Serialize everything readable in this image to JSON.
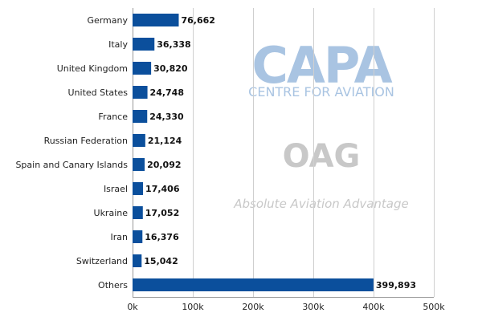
{
  "chart_data": {
    "type": "bar",
    "orientation": "horizontal",
    "categories": [
      "Germany",
      "Italy",
      "United Kingdom",
      "United States",
      "France",
      "Russian Federation",
      "Spain and Canary Islands",
      "Israel",
      "Ukraine",
      "Iran",
      "Switzerland",
      "Others"
    ],
    "values": [
      76662,
      36338,
      30820,
      24748,
      24330,
      21124,
      20092,
      17406,
      17052,
      16376,
      15042,
      399893
    ],
    "value_labels": [
      "76,662",
      "36,338",
      "30,820",
      "24,748",
      "24,330",
      "21,124",
      "20,092",
      "17,406",
      "17,052",
      "16,376",
      "15,042",
      "399,893"
    ],
    "xlim": [
      0,
      500000
    ],
    "ticks": [
      0,
      100000,
      200000,
      300000,
      400000,
      500000
    ],
    "tick_labels": [
      "0k",
      "100k",
      "200k",
      "300k",
      "400k",
      "500k"
    ],
    "title": "",
    "xlabel": "",
    "ylabel": "",
    "grid": true,
    "bar_color": "#0b4f9c"
  },
  "watermarks": {
    "capa_logo": "CAPA",
    "capa_subtitle": "CENTRE FOR AVIATION",
    "oag_logo": "OAG",
    "oag_tagline": "Absolute Aviation Advantage",
    "capa_color": "#a9c4e2",
    "oag_color": "#c8c8c8"
  }
}
